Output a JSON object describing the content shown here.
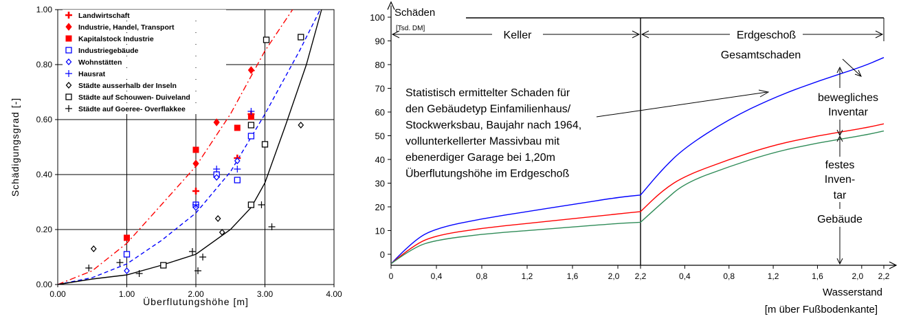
{
  "chart_data": [
    {
      "type": "scatter",
      "xlabel": "Überflutungshöhe [m]",
      "ylabel": "Schädigungsgrad [-]",
      "xlim": [
        0,
        4
      ],
      "ylim": [
        0,
        1
      ],
      "xticks": [
        "0.00",
        "1.00",
        "2.00",
        "3.00",
        "4.00"
      ],
      "yticks": [
        "0.00",
        "0.20",
        "0.40",
        "0.60",
        "0.80",
        "1.00"
      ],
      "grid": true,
      "legend_position": "top-left",
      "series": [
        {
          "name": "Landwirtschaft",
          "marker": "cross-bold",
          "color": "#ff0000",
          "points": [
            [
              2.0,
              0.34
            ],
            [
              2.6,
              0.46
            ],
            [
              2.8,
              0.62
            ]
          ]
        },
        {
          "name": "Industrie, Handel, Transport",
          "marker": "diamond-filled",
          "color": "#ff0000",
          "points": [
            [
              2.0,
              0.44
            ],
            [
              2.3,
              0.59
            ],
            [
              2.8,
              0.78
            ]
          ]
        },
        {
          "name": "Kapitalstock Industrie",
          "marker": "square-filled",
          "color": "#ff0000",
          "points": [
            [
              1.0,
              0.17
            ],
            [
              2.0,
              0.49
            ],
            [
              2.6,
              0.57
            ],
            [
              2.8,
              0.61
            ]
          ]
        },
        {
          "name": "Industriegebäude",
          "marker": "square-open",
          "color": "#0000ff",
          "points": [
            [
              1.0,
              0.11
            ],
            [
              2.0,
              0.29
            ],
            [
              2.3,
              0.4
            ],
            [
              2.6,
              0.38
            ],
            [
              2.8,
              0.54
            ]
          ]
        },
        {
          "name": "Wohnstätten",
          "marker": "diamond-open",
          "color": "#0000ff",
          "points": [
            [
              1.0,
              0.05
            ],
            [
              2.0,
              0.28
            ],
            [
              2.3,
              0.39
            ],
            [
              2.6,
              0.45
            ]
          ]
        },
        {
          "name": "Hausrat",
          "marker": "plus",
          "color": "#0000ff",
          "points": [
            [
              2.0,
              0.29
            ],
            [
              2.3,
              0.42
            ],
            [
              2.6,
              0.42
            ],
            [
              2.8,
              0.63
            ]
          ]
        },
        {
          "name": "Städte ausserhalb der Inseln",
          "marker": "diamond-open",
          "color": "#000000",
          "points": [
            [
              0.52,
              0.13
            ],
            [
              2.32,
              0.24
            ],
            [
              2.38,
              0.19
            ],
            [
              3.52,
              0.58
            ]
          ]
        },
        {
          "name": "Städte auf Schouwen- Duiveland",
          "marker": "square-open",
          "color": "#000000",
          "points": [
            [
              1.53,
              0.07
            ],
            [
              2.8,
              0.29
            ],
            [
              2.8,
              0.58
            ],
            [
              3.0,
              0.51
            ],
            [
              3.02,
              0.89
            ],
            [
              3.52,
              0.9
            ]
          ]
        },
        {
          "name": "Städte auf Goeree- Overflakkee",
          "marker": "plus",
          "color": "#000000",
          "points": [
            [
              0.45,
              0.06
            ],
            [
              0.9,
              0.08
            ],
            [
              1.18,
              0.04
            ],
            [
              1.95,
              0.12
            ],
            [
              2.03,
              0.05
            ],
            [
              2.1,
              0.1
            ],
            [
              2.95,
              0.29
            ],
            [
              3.1,
              0.21
            ]
          ]
        }
      ],
      "curves": [
        {
          "style": "dash-dot",
          "color": "#ff0000",
          "points": [
            [
              0,
              0
            ],
            [
              0.5,
              0.05
            ],
            [
              1.0,
              0.15
            ],
            [
              1.5,
              0.29
            ],
            [
              2.0,
              0.43
            ],
            [
              2.5,
              0.62
            ],
            [
              3.0,
              0.85
            ],
            [
              3.4,
              1.0
            ]
          ]
        },
        {
          "style": "dashed",
          "color": "#0000ff",
          "points": [
            [
              0,
              0
            ],
            [
              0.5,
              0.025
            ],
            [
              1.0,
              0.075
            ],
            [
              1.5,
              0.16
            ],
            [
              2.0,
              0.26
            ],
            [
              2.5,
              0.41
            ],
            [
              3.0,
              0.62
            ],
            [
              3.5,
              0.85
            ],
            [
              3.8,
              1.0
            ]
          ]
        },
        {
          "style": "solid",
          "color": "#000000",
          "points": [
            [
              0,
              0
            ],
            [
              0.5,
              0.02
            ],
            [
              1.0,
              0.035
            ],
            [
              1.5,
              0.07
            ],
            [
              2.0,
              0.11
            ],
            [
              2.5,
              0.2
            ],
            [
              2.8,
              0.28
            ],
            [
              3.0,
              0.37
            ],
            [
              3.3,
              0.58
            ],
            [
              3.6,
              0.8
            ],
            [
              3.82,
              1.0
            ]
          ]
        }
      ]
    },
    {
      "type": "line",
      "ylabel": "Schäden",
      "yunit": "[Tsd. DM]",
      "xlabel": "Wasserstand",
      "xunit": "[m über Fußbodenkante]",
      "ylim": [
        0,
        100
      ],
      "yticks": [
        "0",
        "10",
        "20",
        "30",
        "40",
        "50",
        "60",
        "70",
        "80",
        "90",
        "100"
      ],
      "xticks_left": [
        "0",
        "0,4",
        "0,8",
        "1,2",
        "1,6",
        "2,0",
        "2,2"
      ],
      "xticks_right": [
        "0,4",
        "0,8",
        "1,2",
        "1,6",
        "2,0",
        "2,2"
      ],
      "zones": [
        {
          "label": "Keller",
          "xlim": [
            0,
            2.2
          ]
        },
        {
          "label": "Erdgeschoß",
          "xlim": [
            0,
            2.2
          ]
        }
      ],
      "series": [
        {
          "name": "Gesamtschaden",
          "color": "#0000ff",
          "values_keller": [
            [
              0,
              -4
            ],
            [
              0.2,
              6
            ],
            [
              0.4,
              11
            ],
            [
              0.8,
              15
            ],
            [
              1.2,
              18
            ],
            [
              1.6,
              21
            ],
            [
              2.0,
              24
            ],
            [
              2.2,
              25
            ]
          ],
          "values_eg": [
            [
              0,
              25
            ],
            [
              0.2,
              36
            ],
            [
              0.4,
              45
            ],
            [
              0.8,
              57
            ],
            [
              1.2,
              66
            ],
            [
              1.6,
              73
            ],
            [
              2.0,
              79
            ],
            [
              2.2,
              83
            ]
          ]
        },
        {
          "name": "",
          "color": "#ff0000",
          "values_keller": [
            [
              0,
              -4
            ],
            [
              0.2,
              4
            ],
            [
              0.4,
              8
            ],
            [
              0.8,
              11
            ],
            [
              1.2,
              13
            ],
            [
              1.6,
              15
            ],
            [
              2.0,
              17
            ],
            [
              2.2,
              18
            ]
          ],
          "values_eg": [
            [
              0,
              18
            ],
            [
              0.2,
              27
            ],
            [
              0.4,
              33
            ],
            [
              0.8,
              40
            ],
            [
              1.2,
              46
            ],
            [
              1.6,
              50
            ],
            [
              2.0,
              53
            ],
            [
              2.2,
              55
            ]
          ]
        },
        {
          "name": "",
          "color": "#2e8b57",
          "values_keller": [
            [
              0,
              -4
            ],
            [
              0.2,
              3
            ],
            [
              0.4,
              6
            ],
            [
              0.8,
              8.5
            ],
            [
              1.2,
              10
            ],
            [
              1.6,
              11.5
            ],
            [
              2.0,
              13
            ],
            [
              2.2,
              13.5
            ]
          ],
          "values_eg": [
            [
              0,
              13.5
            ],
            [
              0.2,
              22
            ],
            [
              0.4,
              30
            ],
            [
              0.8,
              37
            ],
            [
              1.2,
              43
            ],
            [
              1.6,
              47
            ],
            [
              2.0,
              50
            ],
            [
              2.2,
              52
            ]
          ]
        }
      ],
      "annotations": {
        "description": [
          "Statistisch ermittelter Schaden für",
          "den Gebäudetyp Einfamilienhaus/",
          "Stockwerksbau, Baujahr nach 1964,",
          "vollunterkellerter Massivbau mit",
          "ebenerdiger Garage bei 1,20m",
          "Überflutungshöhe im Erdgeschoß"
        ],
        "bewegliches": [
          "bewegliches",
          "Inventar"
        ],
        "festes": [
          "festes",
          "Inven-",
          "tar"
        ],
        "gebaeude": "Gebäude"
      }
    }
  ]
}
